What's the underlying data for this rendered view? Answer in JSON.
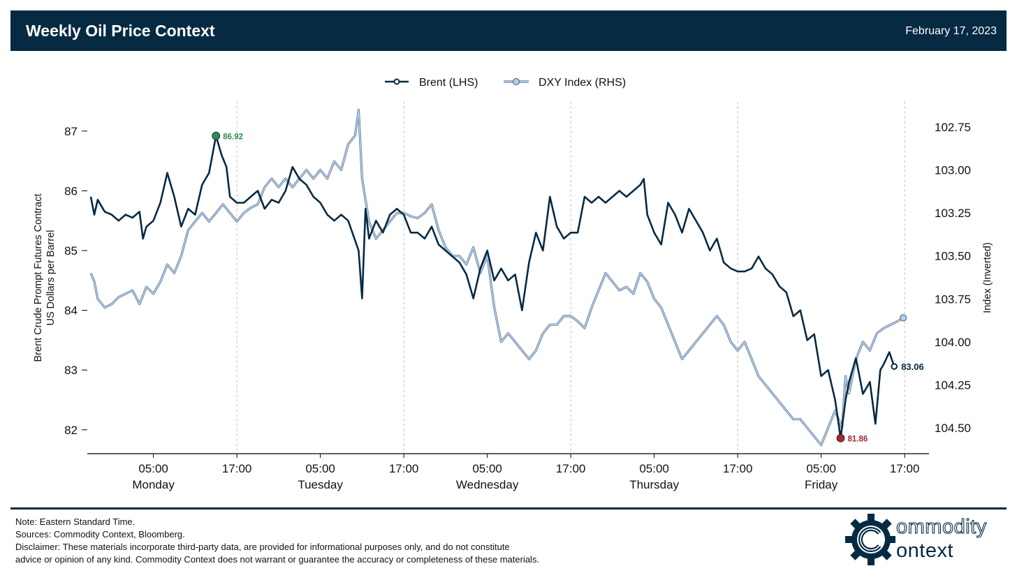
{
  "header": {
    "title": "Weekly Oil Price Context",
    "date": "February 17, 2023"
  },
  "footer": {
    "note": "Note: Eastern Standard Time.",
    "sources": "Sources: Commodity Context, Bloomberg.",
    "disclaimer_line1": "Disclaimer: These materials incorporate third-party data, are provided for informational purposes only, and do not constitute",
    "disclaimer_line2": "advice or opinion of any kind. Commodity Context does not warrant or guarantee the accuracy or completeness of these materials."
  },
  "logo": {
    "word1": "ommodity",
    "word2": "ontext",
    "mark": "C"
  },
  "colors": {
    "brent": "#062a42",
    "dxy": "#b3cdee",
    "dxy_edge": "#5d7183",
    "high": "#2e8b57",
    "low": "#a52a2a",
    "grid": "#c8c8c8"
  },
  "chart_data": {
    "type": "line",
    "x_unit": "hours since Monday 00:00 EST",
    "x_ticks": [
      {
        "hour": 5,
        "label": "05:00",
        "day": "Monday"
      },
      {
        "hour": 17,
        "label": "17:00",
        "day": ""
      },
      {
        "hour": 29,
        "label": "05:00",
        "day": "Tuesday"
      },
      {
        "hour": 41,
        "label": "17:00",
        "day": ""
      },
      {
        "hour": 53,
        "label": "05:00",
        "day": "Wednesday"
      },
      {
        "hour": 65,
        "label": "17:00",
        "day": ""
      },
      {
        "hour": 77,
        "label": "05:00",
        "day": "Thursday"
      },
      {
        "hour": 89,
        "label": "17:00",
        "day": ""
      },
      {
        "hour": 101,
        "label": "05:00",
        "day": "Friday"
      },
      {
        "hour": 113,
        "label": "17:00",
        "day": ""
      }
    ],
    "xlim": [
      -4.5,
      116.5
    ],
    "grid_hours": [
      17,
      41,
      65,
      89,
      113
    ],
    "left_axis": {
      "label_line1": "Brent Crude Prompt Futures Contract",
      "label_line2": "US Dollars per Barrel",
      "ticks": [
        "82",
        "83",
        "84",
        "85",
        "86",
        "87"
      ],
      "ylim": [
        81.6,
        87.5
      ]
    },
    "right_axis": {
      "label": "Index (Inverted)",
      "inverted": true,
      "ticks": [
        "102.75",
        "103.00",
        "103.25",
        "103.50",
        "103.75",
        "104.00",
        "104.25",
        "104.50"
      ],
      "ylim": [
        102.6,
        104.65
      ]
    },
    "legend": {
      "position": "top-center"
    },
    "series": [
      {
        "name": "Brent (LHS)",
        "axis": "left",
        "points": [
          [
            -4.0,
            85.9
          ],
          [
            -3.5,
            85.6
          ],
          [
            -3.0,
            85.85
          ],
          [
            -2.0,
            85.65
          ],
          [
            -1.0,
            85.6
          ],
          [
            0.0,
            85.5
          ],
          [
            1.0,
            85.6
          ],
          [
            2.0,
            85.55
          ],
          [
            3.0,
            85.65
          ],
          [
            3.5,
            85.2
          ],
          [
            4.0,
            85.4
          ],
          [
            5.0,
            85.5
          ],
          [
            6.0,
            85.8
          ],
          [
            7.0,
            86.3
          ],
          [
            8.0,
            85.9
          ],
          [
            9.0,
            85.4
          ],
          [
            10.0,
            85.7
          ],
          [
            11.0,
            85.6
          ],
          [
            12.0,
            86.1
          ],
          [
            13.0,
            86.3
          ],
          [
            14.0,
            86.92
          ],
          [
            14.8,
            86.6
          ],
          [
            15.5,
            86.4
          ],
          [
            16.0,
            85.9
          ],
          [
            17.0,
            85.8
          ],
          [
            18.0,
            85.8
          ],
          [
            19.0,
            85.9
          ],
          [
            20.0,
            86.0
          ],
          [
            21.0,
            85.7
          ],
          [
            22.0,
            85.85
          ],
          [
            23.0,
            85.8
          ],
          [
            24.0,
            86.0
          ],
          [
            25.0,
            86.4
          ],
          [
            26.0,
            86.2
          ],
          [
            27.0,
            86.1
          ],
          [
            28.0,
            85.9
          ],
          [
            29.0,
            85.8
          ],
          [
            30.0,
            85.6
          ],
          [
            31.0,
            85.5
          ],
          [
            32.0,
            85.6
          ],
          [
            33.0,
            85.5
          ],
          [
            34.5,
            85.0
          ],
          [
            35.0,
            84.2
          ],
          [
            35.5,
            85.7
          ],
          [
            36.0,
            85.2
          ],
          [
            37.0,
            85.5
          ],
          [
            38.0,
            85.3
          ],
          [
            39.0,
            85.6
          ],
          [
            40.0,
            85.7
          ],
          [
            41.0,
            85.6
          ],
          [
            42.0,
            85.3
          ],
          [
            43.0,
            85.3
          ],
          [
            44.0,
            85.2
          ],
          [
            45.0,
            85.4
          ],
          [
            46.0,
            85.1
          ],
          [
            47.0,
            85.0
          ],
          [
            48.0,
            84.9
          ],
          [
            49.0,
            84.8
          ],
          [
            50.0,
            84.6
          ],
          [
            51.0,
            84.2
          ],
          [
            52.0,
            84.7
          ],
          [
            53.0,
            85.0
          ],
          [
            54.0,
            84.5
          ],
          [
            55.0,
            84.7
          ],
          [
            56.0,
            84.5
          ],
          [
            57.0,
            84.6
          ],
          [
            58.0,
            84.0
          ],
          [
            59.0,
            84.8
          ],
          [
            60.0,
            85.3
          ],
          [
            61.0,
            85.0
          ],
          [
            62.0,
            85.9
          ],
          [
            63.0,
            85.4
          ],
          [
            64.0,
            85.2
          ],
          [
            65.0,
            85.3
          ],
          [
            66.0,
            85.3
          ],
          [
            67.0,
            85.9
          ],
          [
            68.0,
            85.8
          ],
          [
            69.0,
            85.9
          ],
          [
            70.0,
            85.8
          ],
          [
            71.0,
            85.9
          ],
          [
            72.0,
            86.0
          ],
          [
            73.0,
            85.9
          ],
          [
            74.0,
            86.0
          ],
          [
            75.0,
            86.1
          ],
          [
            75.5,
            86.2
          ],
          [
            76.0,
            85.6
          ],
          [
            77.0,
            85.3
          ],
          [
            78.0,
            85.1
          ],
          [
            79.0,
            85.8
          ],
          [
            80.0,
            85.6
          ],
          [
            81.0,
            85.3
          ],
          [
            82.0,
            85.7
          ],
          [
            83.0,
            85.5
          ],
          [
            84.0,
            85.3
          ],
          [
            85.0,
            85.0
          ],
          [
            86.0,
            85.2
          ],
          [
            87.0,
            84.8
          ],
          [
            88.0,
            84.7
          ],
          [
            89.0,
            84.65
          ],
          [
            90.0,
            84.65
          ],
          [
            91.0,
            84.7
          ],
          [
            92.0,
            84.9
          ],
          [
            93.0,
            84.7
          ],
          [
            94.0,
            84.6
          ],
          [
            95.0,
            84.4
          ],
          [
            96.0,
            84.3
          ],
          [
            97.0,
            83.9
          ],
          [
            98.0,
            84.0
          ],
          [
            99.0,
            83.5
          ],
          [
            100.0,
            83.6
          ],
          [
            101.0,
            82.9
          ],
          [
            102.0,
            83.0
          ],
          [
            103.0,
            82.5
          ],
          [
            103.8,
            81.86
          ],
          [
            104.5,
            82.5
          ],
          [
            105.0,
            82.8
          ],
          [
            106.0,
            83.2
          ],
          [
            107.0,
            82.6
          ],
          [
            108.0,
            82.8
          ],
          [
            108.8,
            82.1
          ],
          [
            109.5,
            83.0
          ],
          [
            110.0,
            83.1
          ],
          [
            110.8,
            83.3
          ],
          [
            111.5,
            83.06
          ]
        ],
        "last_label": "83.06"
      },
      {
        "name": "DXY Index (RHS)",
        "axis": "right",
        "points": [
          [
            -4.0,
            103.6
          ],
          [
            -3.5,
            103.65
          ],
          [
            -3.0,
            103.75
          ],
          [
            -2.0,
            103.8
          ],
          [
            -1.0,
            103.78
          ],
          [
            0.0,
            103.74
          ],
          [
            1.0,
            103.72
          ],
          [
            2.0,
            103.7
          ],
          [
            3.0,
            103.78
          ],
          [
            4.0,
            103.68
          ],
          [
            5.0,
            103.72
          ],
          [
            6.0,
            103.65
          ],
          [
            7.0,
            103.55
          ],
          [
            8.0,
            103.6
          ],
          [
            9.0,
            103.5
          ],
          [
            10.0,
            103.35
          ],
          [
            11.0,
            103.3
          ],
          [
            12.0,
            103.25
          ],
          [
            13.0,
            103.3
          ],
          [
            14.0,
            103.25
          ],
          [
            15.0,
            103.2
          ],
          [
            16.0,
            103.25
          ],
          [
            17.0,
            103.3
          ],
          [
            18.0,
            103.25
          ],
          [
            19.0,
            103.22
          ],
          [
            20.0,
            103.2
          ],
          [
            21.0,
            103.1
          ],
          [
            22.0,
            103.05
          ],
          [
            23.0,
            103.1
          ],
          [
            24.0,
            103.05
          ],
          [
            25.0,
            103.1
          ],
          [
            26.0,
            103.05
          ],
          [
            27.0,
            103.0
          ],
          [
            28.0,
            103.05
          ],
          [
            29.0,
            103.0
          ],
          [
            30.0,
            103.05
          ],
          [
            31.0,
            102.95
          ],
          [
            32.0,
            103.0
          ],
          [
            33.0,
            102.85
          ],
          [
            34.0,
            102.8
          ],
          [
            34.5,
            102.65
          ],
          [
            35.0,
            103.05
          ],
          [
            36.0,
            103.3
          ],
          [
            37.0,
            103.4
          ],
          [
            38.0,
            103.35
          ],
          [
            39.0,
            103.3
          ],
          [
            40.0,
            103.25
          ],
          [
            41.0,
            103.25
          ],
          [
            42.0,
            103.27
          ],
          [
            43.0,
            103.28
          ],
          [
            44.0,
            103.25
          ],
          [
            45.0,
            103.2
          ],
          [
            46.0,
            103.35
          ],
          [
            47.0,
            103.45
          ],
          [
            48.0,
            103.5
          ],
          [
            49.0,
            103.5
          ],
          [
            50.0,
            103.55
          ],
          [
            51.0,
            103.45
          ],
          [
            52.0,
            103.6
          ],
          [
            53.0,
            103.5
          ],
          [
            54.0,
            103.8
          ],
          [
            55.0,
            104.0
          ],
          [
            56.0,
            103.95
          ],
          [
            57.0,
            104.0
          ],
          [
            58.0,
            104.05
          ],
          [
            59.0,
            104.1
          ],
          [
            60.0,
            104.05
          ],
          [
            61.0,
            103.95
          ],
          [
            62.0,
            103.9
          ],
          [
            63.0,
            103.9
          ],
          [
            64.0,
            103.85
          ],
          [
            65.0,
            103.85
          ],
          [
            66.0,
            103.88
          ],
          [
            67.0,
            103.92
          ],
          [
            68.0,
            103.8
          ],
          [
            69.0,
            103.7
          ],
          [
            70.0,
            103.6
          ],
          [
            71.0,
            103.65
          ],
          [
            72.0,
            103.7
          ],
          [
            73.0,
            103.68
          ],
          [
            74.0,
            103.72
          ],
          [
            75.0,
            103.6
          ],
          [
            76.0,
            103.65
          ],
          [
            77.0,
            103.75
          ],
          [
            78.0,
            103.8
          ],
          [
            79.0,
            103.9
          ],
          [
            80.0,
            104.0
          ],
          [
            81.0,
            104.1
          ],
          [
            82.0,
            104.05
          ],
          [
            83.0,
            104.0
          ],
          [
            84.0,
            103.95
          ],
          [
            85.0,
            103.9
          ],
          [
            86.0,
            103.85
          ],
          [
            87.0,
            103.9
          ],
          [
            88.0,
            104.0
          ],
          [
            89.0,
            104.05
          ],
          [
            90.0,
            104.0
          ],
          [
            91.0,
            104.1
          ],
          [
            92.0,
            104.2
          ],
          [
            93.0,
            104.25
          ],
          [
            94.0,
            104.3
          ],
          [
            95.0,
            104.35
          ],
          [
            96.0,
            104.4
          ],
          [
            97.0,
            104.45
          ],
          [
            98.0,
            104.45
          ],
          [
            99.0,
            104.5
          ],
          [
            100.0,
            104.55
          ],
          [
            101.0,
            104.6
          ],
          [
            102.0,
            104.5
          ],
          [
            103.0,
            104.4
          ],
          [
            104.0,
            104.5
          ],
          [
            104.5,
            104.2
          ],
          [
            105.0,
            104.3
          ],
          [
            106.0,
            104.1
          ],
          [
            107.0,
            104.0
          ],
          [
            108.0,
            104.05
          ],
          [
            109.0,
            103.95
          ],
          [
            110.0,
            103.92
          ],
          [
            111.0,
            103.9
          ],
          [
            112.0,
            103.88
          ],
          [
            112.8,
            103.86
          ]
        ]
      }
    ],
    "annotations": [
      {
        "label": "86.92",
        "hour": 14.0,
        "value": 86.92,
        "kind": "high"
      },
      {
        "label": "81.86",
        "hour": 103.8,
        "value": 81.86,
        "kind": "low"
      }
    ]
  }
}
